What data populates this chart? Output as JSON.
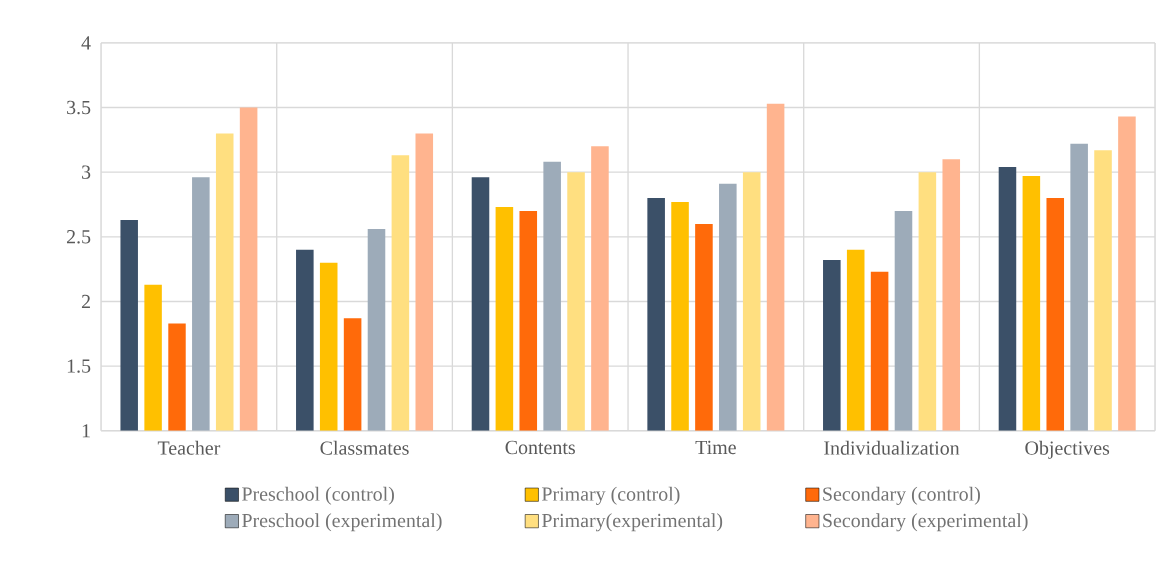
{
  "chart_data": {
    "type": "bar",
    "categories": [
      "Teacher",
      "Classmates",
      "Contents",
      "Time",
      "Individualization",
      "Objectives"
    ],
    "series": [
      {
        "name": "Preschool (control)",
        "color": "#3b5068",
        "values": [
          2.63,
          2.4,
          2.96,
          2.8,
          2.32,
          3.04
        ]
      },
      {
        "name": "Primary (control)",
        "color": "#ffc000",
        "values": [
          2.13,
          2.3,
          2.73,
          2.77,
          2.4,
          2.97
        ]
      },
      {
        "name": "Secondary (control)",
        "color": "#ff6a0a",
        "values": [
          1.83,
          1.87,
          2.7,
          2.6,
          2.23,
          2.8
        ]
      },
      {
        "name": "Preschool (experimental)",
        "color": "#9dabb9",
        "values": [
          2.96,
          2.56,
          3.08,
          2.91,
          2.7,
          3.22
        ]
      },
      {
        "name": "Primary(experimental)",
        "color": "#ffdf80",
        "values": [
          3.3,
          3.13,
          3.0,
          3.0,
          3.0,
          3.17
        ]
      },
      {
        "name": "Secondary (experimental)",
        "color": "#ffb48f",
        "values": [
          3.5,
          3.3,
          3.2,
          3.53,
          3.1,
          3.43
        ]
      }
    ],
    "ylim": [
      1,
      4
    ],
    "yticks": [
      1,
      1.5,
      2,
      2.5,
      3,
      3.5,
      4
    ],
    "grid": true,
    "legend": "bottom"
  }
}
